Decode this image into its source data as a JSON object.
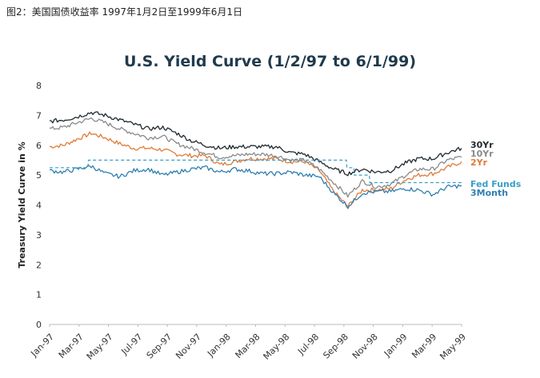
{
  "caption": "图2：美国国债收益率 1997年1月2日至1999年6月1日",
  "chart_data": {
    "type": "line",
    "title": "U.S. Yield Curve (1/2/97 to 6/1/99)",
    "xlabel": "",
    "ylabel": "Treasury Yield Curve in %",
    "ylim": [
      0,
      8
    ],
    "yticks": [
      "0",
      "1",
      "2",
      "3",
      "4",
      "5",
      "6",
      "7",
      "8"
    ],
    "x_tick_labels": [
      "Jan-97",
      "Mar-97",
      "May-97",
      "Jul-97",
      "Sep-97",
      "Nov-97",
      "Jan-98",
      "Mar-98",
      "May-98",
      "Jul-98",
      "Sep-98",
      "Nov-98",
      "Jan-99",
      "Mar-99",
      "May-99"
    ],
    "xlim": [
      "1997-01-02",
      "1999-06-01"
    ],
    "grid": false,
    "legend": "right, labels at line ends",
    "series": [
      {
        "name": "30Yr",
        "color": "#1f2a30",
        "x": [
          "1997-01-02",
          "1997-02-01",
          "1997-03-01",
          "1997-04-01",
          "1997-05-01",
          "1997-06-01",
          "1997-07-01",
          "1997-08-01",
          "1997-09-01",
          "1997-10-01",
          "1997-11-01",
          "1997-12-01",
          "1998-01-01",
          "1998-02-01",
          "1998-03-01",
          "1998-04-01",
          "1998-05-01",
          "1998-06-01",
          "1998-07-01",
          "1998-08-01",
          "1998-09-01",
          "1998-10-01",
          "1998-11-01",
          "1998-12-01",
          "1999-01-01",
          "1999-02-01",
          "1999-03-01",
          "1999-04-01",
          "1999-05-01",
          "1999-06-01"
        ],
        "values": [
          6.8,
          6.85,
          6.95,
          7.1,
          7.0,
          6.85,
          6.7,
          6.55,
          6.6,
          6.4,
          6.15,
          6.0,
          5.9,
          5.95,
          5.95,
          5.95,
          5.95,
          5.75,
          5.7,
          5.45,
          5.2,
          5.05,
          5.2,
          5.1,
          5.15,
          5.4,
          5.55,
          5.55,
          5.75,
          5.9
        ]
      },
      {
        "name": "10Yr",
        "color": "#8a8a8a",
        "x": [
          "1997-01-02",
          "1997-02-01",
          "1997-03-01",
          "1997-04-01",
          "1997-05-01",
          "1997-06-01",
          "1997-07-01",
          "1997-08-01",
          "1997-09-01",
          "1997-10-01",
          "1997-11-01",
          "1997-12-01",
          "1998-01-01",
          "1998-02-01",
          "1998-03-01",
          "1998-04-01",
          "1998-05-01",
          "1998-06-01",
          "1998-07-01",
          "1998-08-01",
          "1998-09-01",
          "1998-10-01",
          "1998-11-01",
          "1998-12-01",
          "1999-01-01",
          "1999-02-01",
          "1999-03-01",
          "1999-04-01",
          "1999-05-01",
          "1999-06-01"
        ],
        "values": [
          6.55,
          6.6,
          6.75,
          6.9,
          6.75,
          6.55,
          6.4,
          6.25,
          6.3,
          6.05,
          5.9,
          5.75,
          5.6,
          5.65,
          5.7,
          5.7,
          5.65,
          5.5,
          5.5,
          5.2,
          4.75,
          4.3,
          4.8,
          4.6,
          4.7,
          5.0,
          5.2,
          5.2,
          5.5,
          5.6
        ]
      },
      {
        "name": "2Yr",
        "color": "#e07b39",
        "x": [
          "1997-01-02",
          "1997-02-01",
          "1997-03-01",
          "1997-04-01",
          "1997-05-01",
          "1997-06-01",
          "1997-07-01",
          "1997-08-01",
          "1997-09-01",
          "1997-10-01",
          "1997-11-01",
          "1997-12-01",
          "1998-01-01",
          "1998-02-01",
          "1998-03-01",
          "1998-04-01",
          "1998-05-01",
          "1998-06-01",
          "1998-07-01",
          "1998-08-01",
          "1998-09-01",
          "1998-10-01",
          "1998-11-01",
          "1998-12-01",
          "1999-01-01",
          "1999-02-01",
          "1999-03-01",
          "1999-04-01",
          "1999-05-01",
          "1999-06-01"
        ],
        "values": [
          5.95,
          6.0,
          6.2,
          6.4,
          6.25,
          6.05,
          5.9,
          5.9,
          5.85,
          5.7,
          5.65,
          5.65,
          5.35,
          5.45,
          5.55,
          5.55,
          5.55,
          5.45,
          5.45,
          5.15,
          4.45,
          3.95,
          4.5,
          4.5,
          4.55,
          4.85,
          5.0,
          5.05,
          5.25,
          5.45
        ]
      },
      {
        "name": "Fed Funds",
        "color": "#3a9ec9",
        "dashed": true,
        "x": [
          "1997-01-02",
          "1997-03-25",
          "1997-03-26",
          "1998-09-28",
          "1998-09-29",
          "1998-10-14",
          "1998-10-15",
          "1998-11-16",
          "1998-11-17",
          "1999-06-01"
        ],
        "values": [
          5.25,
          5.25,
          5.5,
          5.5,
          5.25,
          5.25,
          5.0,
          5.0,
          4.75,
          4.75
        ]
      },
      {
        "name": "3Month",
        "color": "#2f7fb0",
        "x": [
          "1997-01-02",
          "1997-02-01",
          "1997-03-01",
          "1997-04-01",
          "1997-05-01",
          "1997-06-01",
          "1997-07-01",
          "1997-08-01",
          "1997-09-01",
          "1997-10-01",
          "1997-11-01",
          "1997-12-01",
          "1998-01-01",
          "1998-02-01",
          "1998-03-01",
          "1998-04-01",
          "1998-05-01",
          "1998-06-01",
          "1998-07-01",
          "1998-08-01",
          "1998-09-01",
          "1998-10-01",
          "1998-11-01",
          "1998-12-01",
          "1999-01-01",
          "1999-02-01",
          "1999-03-01",
          "1999-04-01",
          "1999-05-01",
          "1999-06-01"
        ],
        "values": [
          5.15,
          5.1,
          5.2,
          5.3,
          5.05,
          4.95,
          5.15,
          5.2,
          5.0,
          5.1,
          5.2,
          5.25,
          5.1,
          5.2,
          5.15,
          5.05,
          5.05,
          5.1,
          5.0,
          4.95,
          4.4,
          3.95,
          4.4,
          4.45,
          4.45,
          4.55,
          4.5,
          4.35,
          4.6,
          4.65
        ]
      }
    ]
  }
}
